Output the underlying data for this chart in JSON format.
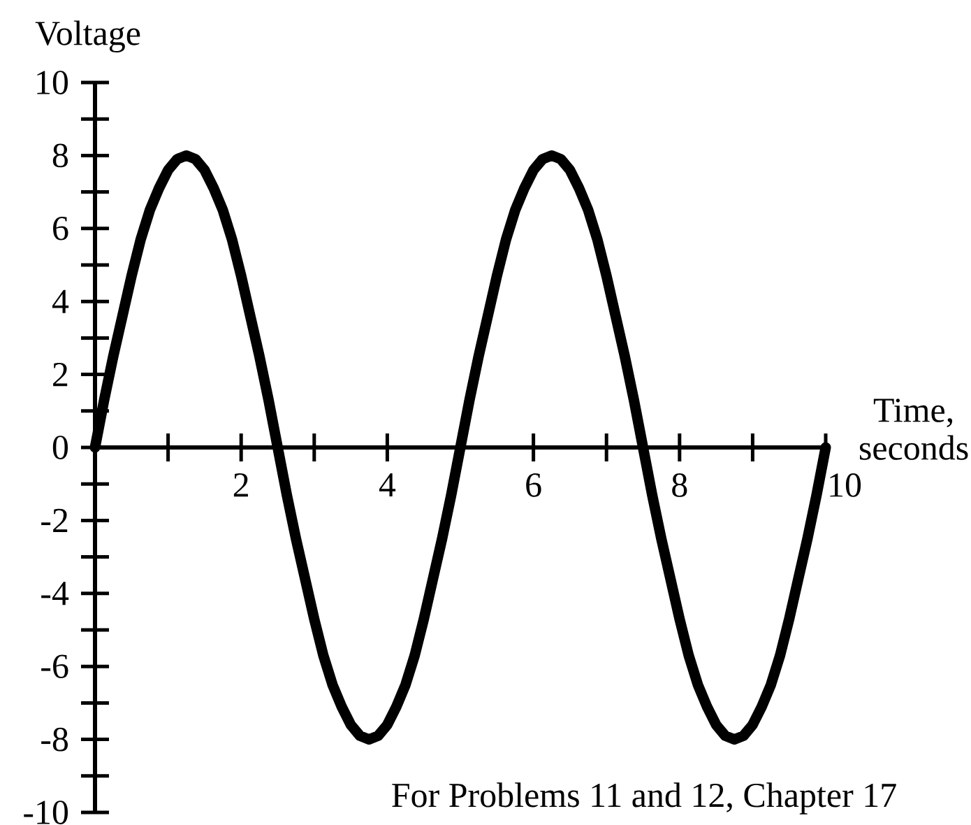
{
  "chart_data": {
    "type": "line",
    "xlabel": "Time, seconds",
    "ylabel": "Voltage",
    "annotations": [
      "For Problems 11 and 12, Chapter 17"
    ],
    "x": [
      0,
      0.125,
      0.25,
      0.375,
      0.5,
      0.625,
      0.75,
      0.875,
      1,
      1.125,
      1.25,
      1.375,
      1.5,
      1.625,
      1.75,
      1.875,
      2,
      2.125,
      2.25,
      2.375,
      2.5,
      2.625,
      2.75,
      2.875,
      3,
      3.125,
      3.25,
      3.375,
      3.5,
      3.625,
      3.75,
      3.875,
      4,
      4.125,
      4.25,
      4.375,
      4.5,
      4.625,
      4.75,
      4.875,
      5,
      5.125,
      5.25,
      5.375,
      5.5,
      5.625,
      5.75,
      5.875,
      6,
      6.125,
      6.25,
      6.375,
      6.5,
      6.625,
      6.75,
      6.875,
      7,
      7.125,
      7.25,
      7.375,
      7.5,
      7.625,
      7.75,
      7.875,
      8,
      8.125,
      8.25,
      8.375,
      8.5,
      8.625,
      8.75,
      8.875,
      9,
      9.125,
      9.25,
      9.375,
      9.5,
      9.625,
      9.75,
      9.875,
      10
    ],
    "values": [
      0,
      1.3,
      2.5,
      3.6,
      4.7,
      5.7,
      6.5,
      7.1,
      7.6,
      7.9,
      8,
      7.9,
      7.6,
      7.1,
      6.5,
      5.7,
      4.7,
      3.6,
      2.5,
      1.3,
      0,
      -1.3,
      -2.5,
      -3.6,
      -4.7,
      -5.7,
      -6.5,
      -7.1,
      -7.6,
      -7.9,
      -8,
      -7.9,
      -7.6,
      -7.1,
      -6.5,
      -5.7,
      -4.7,
      -3.6,
      -2.5,
      -1.3,
      0,
      1.3,
      2.5,
      3.6,
      4.7,
      5.7,
      6.5,
      7.1,
      7.6,
      7.9,
      8,
      7.9,
      7.6,
      7.1,
      6.5,
      5.7,
      4.7,
      3.6,
      2.5,
      1.3,
      0,
      -1.3,
      -2.5,
      -3.6,
      -4.7,
      -5.7,
      -6.5,
      -7.1,
      -7.6,
      -7.9,
      -8,
      -7.9,
      -7.6,
      -7.1,
      -6.5,
      -5.7,
      -4.7,
      -3.6,
      -2.5,
      -1.3,
      0
    ],
    "color": "#000000",
    "line_style": "solid",
    "xlim": [
      0,
      10
    ],
    "ylim": [
      -10,
      10
    ],
    "xticks": [
      {
        "value": 1,
        "label": null
      },
      2,
      {
        "value": 3,
        "label": null
      },
      4,
      {
        "value": 5,
        "label": null
      },
      6,
      {
        "value": 7,
        "label": null
      },
      8,
      {
        "value": 9,
        "label": null
      },
      10
    ],
    "yticks": [
      -10,
      {
        "value": -9,
        "label": null
      },
      -8,
      {
        "value": -7,
        "label": null
      },
      -6,
      {
        "value": -5,
        "label": null
      },
      -4,
      {
        "value": -3,
        "label": null
      },
      -2,
      {
        "value": -1,
        "label": null
      },
      0,
      {
        "value": 1,
        "label": null
      },
      2,
      {
        "value": 3,
        "label": null
      },
      4,
      {
        "value": 5,
        "label": null
      },
      6,
      {
        "value": 7,
        "label": null
      },
      8,
      {
        "value": 9,
        "label": null
      },
      10
    ]
  }
}
